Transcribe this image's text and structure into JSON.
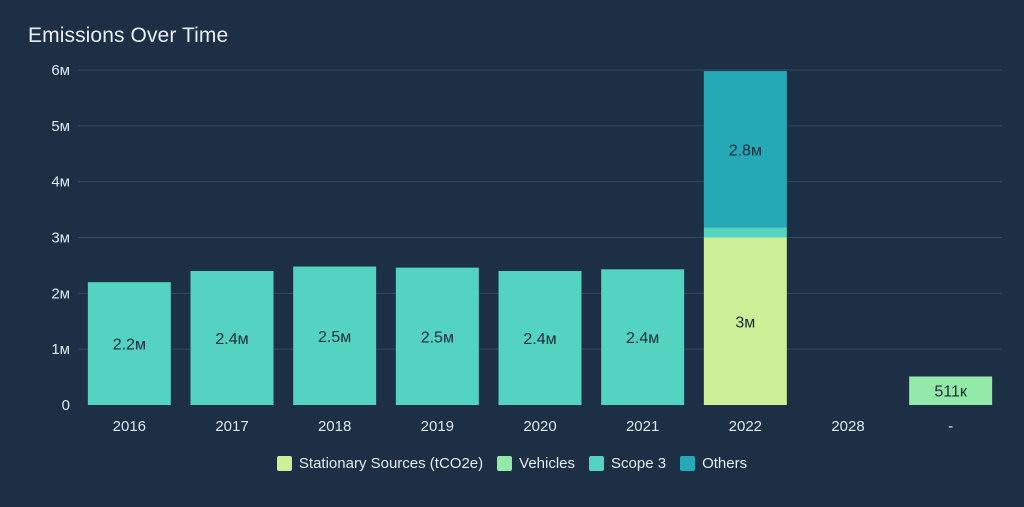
{
  "title": "Emissions Over Time",
  "colors": {
    "stationary": "#cdef97",
    "vehicles": "#93e9a8",
    "scope3": "#53d3c0",
    "others": "#26a9b6",
    "grid": "#34495e",
    "axisText": "#dfe7ef",
    "labelText": "#1b2a3a"
  },
  "chart_data": {
    "type": "bar",
    "stacked": true,
    "title": "Emissions Over Time",
    "xlabel": "",
    "ylabel": "",
    "ylim": [
      0,
      6000000
    ],
    "y_ticks": [
      {
        "value": 0,
        "label": "0"
      },
      {
        "value": 1000000,
        "label": "1м"
      },
      {
        "value": 2000000,
        "label": "2м"
      },
      {
        "value": 3000000,
        "label": "3м"
      },
      {
        "value": 4000000,
        "label": "4м"
      },
      {
        "value": 5000000,
        "label": "5м"
      },
      {
        "value": 6000000,
        "label": "6м"
      }
    ],
    "categories": [
      "2016",
      "2017",
      "2018",
      "2019",
      "2020",
      "2021",
      "2022",
      "2028",
      "-"
    ],
    "legend_position": "bottom",
    "series": [
      {
        "key": "stationary",
        "name": "Stationary Sources (tCO2e)",
        "values": [
          0,
          0,
          0,
          0,
          0,
          0,
          3000000,
          0,
          0
        ]
      },
      {
        "key": "vehicles",
        "name": "Vehicles",
        "values": [
          0,
          0,
          0,
          0,
          0,
          0,
          0,
          0,
          511000
        ]
      },
      {
        "key": "scope3",
        "name": "Scope 3",
        "values": [
          2200000,
          2400000,
          2480000,
          2460000,
          2400000,
          2430000,
          180000,
          0,
          0
        ]
      },
      {
        "key": "others",
        "name": "Others",
        "values": [
          0,
          0,
          0,
          0,
          0,
          0,
          2800000,
          0,
          0
        ]
      }
    ],
    "data_labels": [
      {
        "category": "2016",
        "series": "scope3",
        "text": "2.2м"
      },
      {
        "category": "2017",
        "series": "scope3",
        "text": "2.4м"
      },
      {
        "category": "2018",
        "series": "scope3",
        "text": "2.5м"
      },
      {
        "category": "2019",
        "series": "scope3",
        "text": "2.5м"
      },
      {
        "category": "2020",
        "series": "scope3",
        "text": "2.4м"
      },
      {
        "category": "2021",
        "series": "scope3",
        "text": "2.4м"
      },
      {
        "category": "2022",
        "series": "stationary",
        "text": "3м"
      },
      {
        "category": "2022",
        "series": "others",
        "text": "2.8м"
      },
      {
        "category": "-",
        "series": "vehicles",
        "text": "511к"
      }
    ]
  }
}
